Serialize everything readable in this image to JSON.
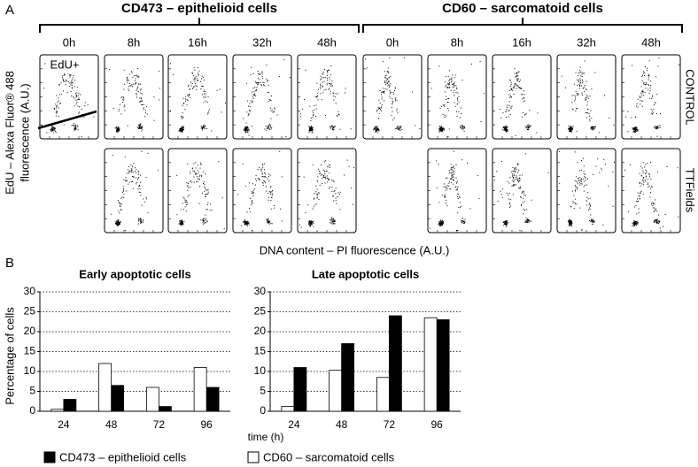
{
  "panel_a": {
    "label": "A",
    "groups": [
      "CD473 – epithelioid cells",
      "CD60 – sarcomatoid cells"
    ],
    "timepoints": [
      "0h",
      "8h",
      "16h",
      "32h",
      "48h"
    ],
    "rows": [
      "CONTROL",
      "TTFields"
    ],
    "gate_label": "EdU+",
    "y_label": [
      "EdU – Alexa Fluor® 488",
      "fluorescence (A.U.)"
    ],
    "x_label": "DNA content – PI fluorescence (A.U.)"
  },
  "panel_b": {
    "label": "B"
  },
  "chart_data": [
    {
      "type": "bar",
      "title": "Early apoptotic cells",
      "y_label": "Percentage of cells",
      "x_label": "time (h)",
      "categories": [
        "24",
        "48",
        "72",
        "96"
      ],
      "series": [
        {
          "name": "CD473 – epithelioid cells",
          "color": "#000000",
          "values": [
            3,
            6.5,
            1.2,
            6
          ]
        },
        {
          "name": "CD60 – sarcomatoid cells",
          "color": "#ffffff",
          "values": [
            0.5,
            12,
            6,
            11
          ]
        }
      ],
      "ylim": [
        0,
        30
      ],
      "yticks": [
        0,
        5,
        10,
        15,
        20,
        25,
        30
      ],
      "grid": true
    },
    {
      "type": "bar",
      "title": "Late apoptotic cells",
      "categories": [
        "24",
        "48",
        "72",
        "96"
      ],
      "series": [
        {
          "name": "CD473 – epithelioid cells",
          "color": "#000000",
          "values": [
            11,
            17,
            24,
            23
          ]
        },
        {
          "name": "CD60 – sarcomatoid cells",
          "color": "#ffffff",
          "values": [
            1.2,
            10.3,
            8.5,
            23.5
          ]
        }
      ],
      "ylim": [
        0,
        30
      ],
      "yticks": [
        0,
        5,
        10,
        15,
        20,
        25,
        30
      ],
      "grid": true
    }
  ]
}
